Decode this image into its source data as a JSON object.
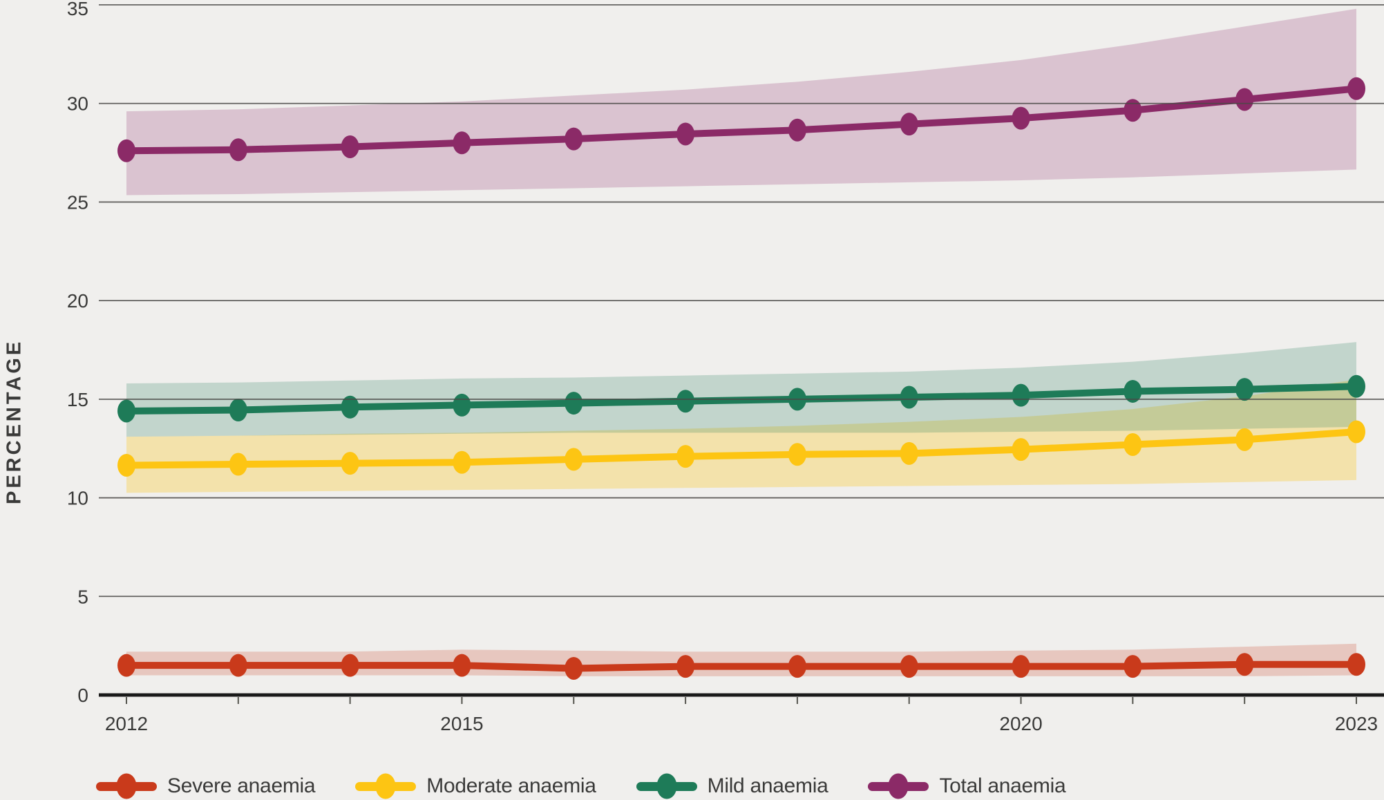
{
  "chart_data": {
    "type": "line",
    "title": "",
    "ylabel": "PERCENTAGE",
    "ylim": [
      0,
      35
    ],
    "yticks": [
      0,
      5,
      10,
      15,
      20,
      25,
      30,
      35
    ],
    "x": [
      2012,
      2013,
      2014,
      2015,
      2016,
      2017,
      2018,
      2019,
      2020,
      2021,
      2022,
      2023
    ],
    "x_axis_labels": [
      {
        "index": 0,
        "label": "2012"
      },
      {
        "index": 3,
        "label": "2015"
      },
      {
        "index": 8,
        "label": "2020"
      },
      {
        "index": 11,
        "label": "2023"
      }
    ],
    "grid": true,
    "legend_position": "bottom",
    "background_color": "#f0efed",
    "grid_color": "#4a4947",
    "axis_color": "#1a1a1a",
    "text_color": "#3a3a39",
    "series": [
      {
        "name": "Severe anaemia",
        "color": "#c93a1b",
        "band_opacity": 0.22,
        "values": [
          1.5,
          1.5,
          1.5,
          1.5,
          1.35,
          1.45,
          1.45,
          1.45,
          1.45,
          1.45,
          1.55,
          1.55
        ],
        "band_upper": [
          2.2,
          2.2,
          2.2,
          2.3,
          2.25,
          2.2,
          2.2,
          2.2,
          2.25,
          2.3,
          2.45,
          2.6
        ],
        "band_lower": [
          1.0,
          1.0,
          1.0,
          1.0,
          0.95,
          0.95,
          0.95,
          0.95,
          0.95,
          0.95,
          0.95,
          1.0
        ]
      },
      {
        "name": "Moderate anaemia",
        "color": "#fdc513",
        "band_opacity": 0.3,
        "values": [
          11.65,
          11.7,
          11.75,
          11.8,
          11.95,
          12.1,
          12.2,
          12.25,
          12.45,
          12.7,
          12.95,
          13.35
        ],
        "band_upper": [
          13.1,
          13.15,
          13.25,
          13.3,
          13.4,
          13.5,
          13.65,
          13.85,
          14.1,
          14.5,
          15.15,
          16.0
        ],
        "band_lower": [
          10.25,
          10.3,
          10.35,
          10.4,
          10.45,
          10.5,
          10.55,
          10.6,
          10.65,
          10.7,
          10.8,
          10.9
        ]
      },
      {
        "name": "Mild anaemia",
        "color": "#1e7b58",
        "band_opacity": 0.22,
        "values": [
          14.4,
          14.45,
          14.6,
          14.7,
          14.8,
          14.9,
          15.0,
          15.1,
          15.2,
          15.4,
          15.5,
          15.65
        ],
        "band_upper": [
          15.8,
          15.85,
          15.95,
          16.05,
          16.1,
          16.2,
          16.3,
          16.4,
          16.6,
          16.9,
          17.35,
          17.9
        ],
        "band_lower": [
          13.1,
          13.15,
          13.2,
          13.25,
          13.3,
          13.3,
          13.3,
          13.3,
          13.35,
          13.4,
          13.5,
          13.6
        ]
      },
      {
        "name": "Total anaemia",
        "color": "#8b2a67",
        "band_opacity": 0.22,
        "values": [
          27.6,
          27.65,
          27.8,
          28.0,
          28.2,
          28.45,
          28.65,
          28.95,
          29.25,
          29.65,
          30.2,
          30.75
        ],
        "band_upper": [
          29.6,
          29.7,
          29.9,
          30.1,
          30.4,
          30.7,
          31.1,
          31.6,
          32.2,
          33.0,
          33.9,
          34.8
        ],
        "band_lower": [
          25.35,
          25.4,
          25.5,
          25.6,
          25.7,
          25.8,
          25.9,
          26.0,
          26.1,
          26.25,
          26.45,
          26.65
        ]
      }
    ]
  }
}
